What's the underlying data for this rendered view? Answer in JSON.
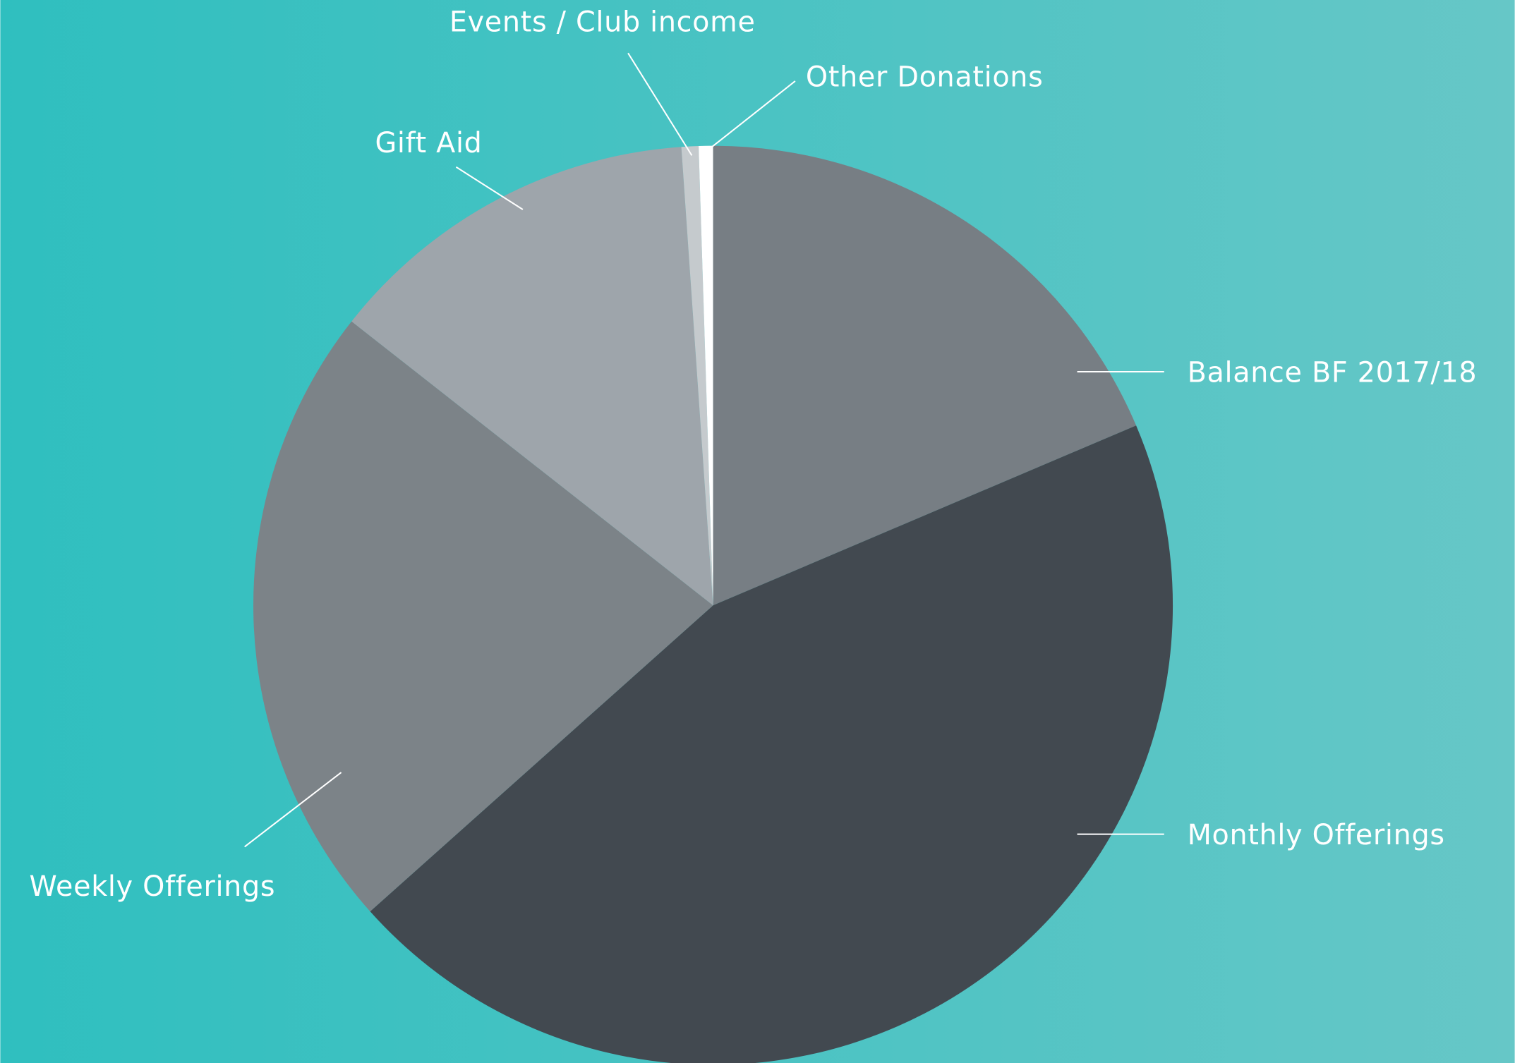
{
  "chart_data": {
    "type": "pie",
    "categories": [
      "Balance BF 2017/18",
      "Monthly Offerings",
      "Weekly Offerings",
      "Gift Aid",
      "Events / Club income",
      "Other Donations"
    ],
    "values": [
      18.6,
      44.8,
      22.2,
      13.3,
      0.6,
      0.5
    ],
    "colors": [
      "#777e84",
      "#424950",
      "#7c8388",
      "#9ea5ab",
      "#c5cacd",
      "#ffffff"
    ]
  }
}
